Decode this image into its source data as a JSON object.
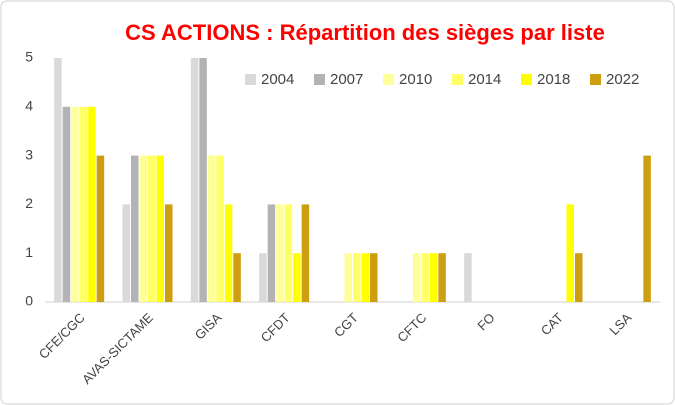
{
  "chart_data": {
    "type": "bar",
    "title": "CS ACTIONS : Répartition des sièges par liste",
    "categories": [
      "CFE/CGC",
      "AVAS-SICTAME",
      "GISA",
      "CFDT",
      "CGT",
      "CFTC",
      "FO",
      "CAT",
      "LSA"
    ],
    "series": [
      {
        "name": "2004",
        "color": "#d9d9d9",
        "values": [
          5,
          2,
          5,
          1,
          0,
          0,
          1,
          0,
          0
        ]
      },
      {
        "name": "2007",
        "color": "#b3b3b3",
        "values": [
          4,
          3,
          5,
          2,
          0,
          0,
          0,
          0,
          0
        ]
      },
      {
        "name": "2010",
        "color": "#ffff99",
        "values": [
          4,
          3,
          3,
          2,
          1,
          1,
          0,
          0,
          0
        ]
      },
      {
        "name": "2014",
        "color": "#ffff66",
        "values": [
          4,
          3,
          3,
          2,
          1,
          1,
          0,
          0,
          0
        ]
      },
      {
        "name": "2018",
        "color": "#ffff00",
        "values": [
          4,
          3,
          2,
          1,
          1,
          1,
          0,
          2,
          0
        ]
      },
      {
        "name": "2022",
        "color": "#cc9e10",
        "values": [
          3,
          2,
          1,
          2,
          1,
          1,
          0,
          1,
          3
        ]
      }
    ],
    "ylim": [
      0,
      5
    ],
    "yticks": [
      0,
      1,
      2,
      3,
      4,
      5
    ],
    "grid": false,
    "legend": "top-right"
  }
}
